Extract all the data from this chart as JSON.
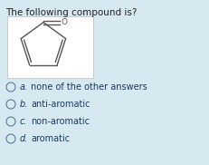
{
  "background_color": "#d6e8f0",
  "title": "The following compound is?",
  "title_fontsize": 7.5,
  "title_color": "#222222",
  "options": [
    {
      "label": "a.",
      "text": "none of the other answers"
    },
    {
      "label": "b.",
      "text": "anti-aromatic"
    },
    {
      "label": "c.",
      "text": "non-aromatic"
    },
    {
      "label": "d.",
      "text": "aromatic"
    }
  ],
  "option_fontsize": 7.0,
  "option_color": "#1a3a5c",
  "circle_color": "#5a7a9a",
  "molecule_line_color": "#555555",
  "mol_box_color": "#ffffff",
  "mol_box_edge": "#bbbbbb"
}
